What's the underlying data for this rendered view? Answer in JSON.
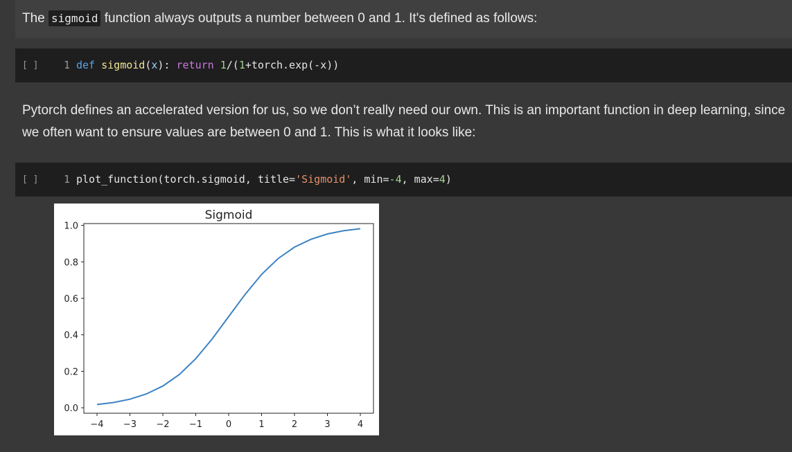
{
  "toolbar": {
    "icons": [
      "arrow-up-icon",
      "arrow-down-icon",
      "link-icon",
      "comment-icon",
      "edit-icon",
      "mirror-icon",
      "delete-icon"
    ]
  },
  "cells": {
    "text1": {
      "before": "The ",
      "code": "sigmoid",
      "after": " function always outputs a number between 0 and 1. It's defined as follows:"
    },
    "code1": {
      "bracket": "[ ]",
      "line": "1",
      "tokens": {
        "def": "def",
        "name": "sigmoid",
        "open": "(",
        "param": "x",
        "close": "): ",
        "ret": "return",
        "sp": " ",
        "one": "1",
        "rest1": "/(",
        "one2": "1",
        "rest2": "+torch.exp(-x))"
      }
    },
    "text2": {
      "text": "Pytorch defines an accelerated version for us, so we don’t really need our own. This is an important function in deep learning, since we often want to ensure values are between 0 and 1. This is what it looks like:"
    },
    "code2": {
      "bracket": "[ ]",
      "line": "1",
      "tokens": {
        "a": "plot_function(torch.sigmoid, title=",
        "str": "'Sigmoid'",
        "b": ", min=",
        "n1": "-4",
        "c": ", max=",
        "n2": "4",
        "d": ")"
      }
    }
  },
  "chart_data": {
    "type": "line",
    "title": "Sigmoid",
    "xlabel": "",
    "ylabel": "",
    "xlim": [
      -4.4,
      4.4
    ],
    "ylim": [
      -0.03,
      1.01
    ],
    "xticks": [
      -4,
      -3,
      -2,
      -1,
      0,
      1,
      2,
      3,
      4
    ],
    "xtick_labels": [
      "−4",
      "−3",
      "−2",
      "−1",
      "0",
      "1",
      "2",
      "3",
      "4"
    ],
    "yticks": [
      0.0,
      0.2,
      0.4,
      0.6,
      0.8,
      1.0
    ],
    "ytick_labels": [
      "0.0",
      "0.2",
      "0.4",
      "0.6",
      "0.8",
      "1.0"
    ],
    "grid": false,
    "line_color": "#3b82c4",
    "series": [
      {
        "x": [
          -4,
          -3.5,
          -3,
          -2.5,
          -2,
          -1.5,
          -1,
          -0.5,
          0,
          0.5,
          1,
          1.5,
          2,
          2.5,
          3,
          3.5,
          4
        ],
        "y": [
          0.018,
          0.029,
          0.047,
          0.076,
          0.119,
          0.182,
          0.269,
          0.378,
          0.5,
          0.622,
          0.731,
          0.818,
          0.881,
          0.924,
          0.953,
          0.971,
          0.982
        ]
      }
    ]
  }
}
